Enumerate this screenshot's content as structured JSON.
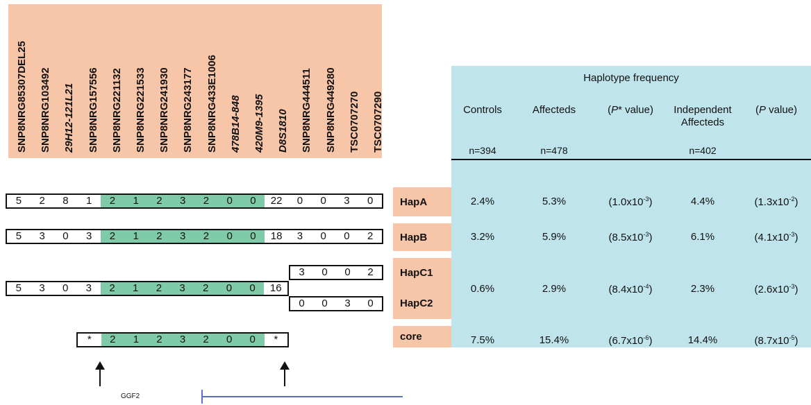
{
  "markers": [
    {
      "name": "SNP8NRG85307DEL25",
      "italic": false
    },
    {
      "name": "SNP8NRG103492",
      "italic": false
    },
    {
      "name": "29H12-121L21",
      "italic": true
    },
    {
      "name": "SNP8NRG157556",
      "italic": false
    },
    {
      "name": "SNP8NRG221132",
      "italic": false
    },
    {
      "name": "SNP8NRG221533",
      "italic": false
    },
    {
      "name": "SNP8NRG241930",
      "italic": false
    },
    {
      "name": "SNP8NRG243177",
      "italic": false
    },
    {
      "name": "SNP8NRG433E1006",
      "italic": false
    },
    {
      "name": "478B14-848",
      "italic": true
    },
    {
      "name": "420M9-1395",
      "italic": true
    },
    {
      "name": "D8S1810",
      "italic": true
    },
    {
      "name": "SNP8NRG444511",
      "italic": false
    },
    {
      "name": "SNP8NRG449280",
      "italic": false
    },
    {
      "name": "TSC0707270",
      "italic": false
    },
    {
      "name": "TSC0707290",
      "italic": false
    }
  ],
  "table": {
    "title": "Haplotype frequency",
    "headers": {
      "controls": "Controls",
      "affecteds": "Affecteds",
      "p_star_left": "(",
      "p_star_p": "P",
      "p_star_right": "* value)",
      "independent_line1": "Independent",
      "independent_line2": "Affecteds",
      "p_left": "(",
      "p_p": "P",
      "p_right": " value)"
    },
    "n": {
      "controls": "n=394",
      "affecteds": "n=478",
      "independent": "n=402"
    }
  },
  "haplotypes": {
    "hapA": {
      "label": "HapA",
      "controls": "2.4%",
      "affecteds": "5.3%",
      "pstar_base": "(1.0x10",
      "pstar_exp": "-3",
      "independent": "4.4%",
      "p_base": "(1.3x10",
      "p_exp": "-2"
    },
    "hapB": {
      "label": "HapB",
      "controls": "3.2%",
      "affecteds": "5.9%",
      "pstar_base": "(8.5x10",
      "pstar_exp": "-3",
      "independent": "6.1%",
      "p_base": "(4.1x10",
      "p_exp": "-3"
    },
    "hapC": {
      "label1": "HapC1",
      "label2": "HapC2",
      "controls": "0.6%",
      "affecteds": "2.9%",
      "pstar_base": "(8.4x10",
      "pstar_exp": "-4",
      "independent": "2.3%",
      "p_base": "(2.6x10",
      "p_exp": "-3"
    },
    "core": {
      "label": "core",
      "controls": "7.5%",
      "affecteds": "15.4%",
      "pstar_base": "(6.7x10",
      "pstar_exp": "-6",
      "independent": "14.4%",
      "p_base": "(8.7x10",
      "p_exp": "-5"
    }
  },
  "close_paren": ")",
  "alleles": {
    "hapA": [
      "5",
      "2",
      "8",
      "1",
      "2",
      "1",
      "2",
      "3",
      "2",
      "0",
      "0",
      "22",
      "0",
      "0",
      "3",
      "0"
    ],
    "hapB": [
      "5",
      "3",
      "0",
      "3",
      "2",
      "1",
      "2",
      "3",
      "2",
      "0",
      "0",
      "18",
      "3",
      "0",
      "0",
      "2"
    ],
    "hapC_main": [
      "5",
      "3",
      "0",
      "3",
      "2",
      "1",
      "2",
      "3",
      "2",
      "0",
      "0",
      "16"
    ],
    "hapC1_tail": [
      "3",
      "0",
      "0",
      "2"
    ],
    "hapC2_tail": [
      "0",
      "0",
      "3",
      "0"
    ],
    "core": [
      "*",
      "2",
      "1",
      "2",
      "3",
      "2",
      "0",
      "0",
      "*"
    ]
  },
  "gene_label": "GGF2",
  "colors": {
    "marker_bg": "#f7c5a7",
    "table_bg": "#bfe4ec",
    "core_green": "#7fcaa8",
    "gene_line": "#5a6fbf"
  }
}
